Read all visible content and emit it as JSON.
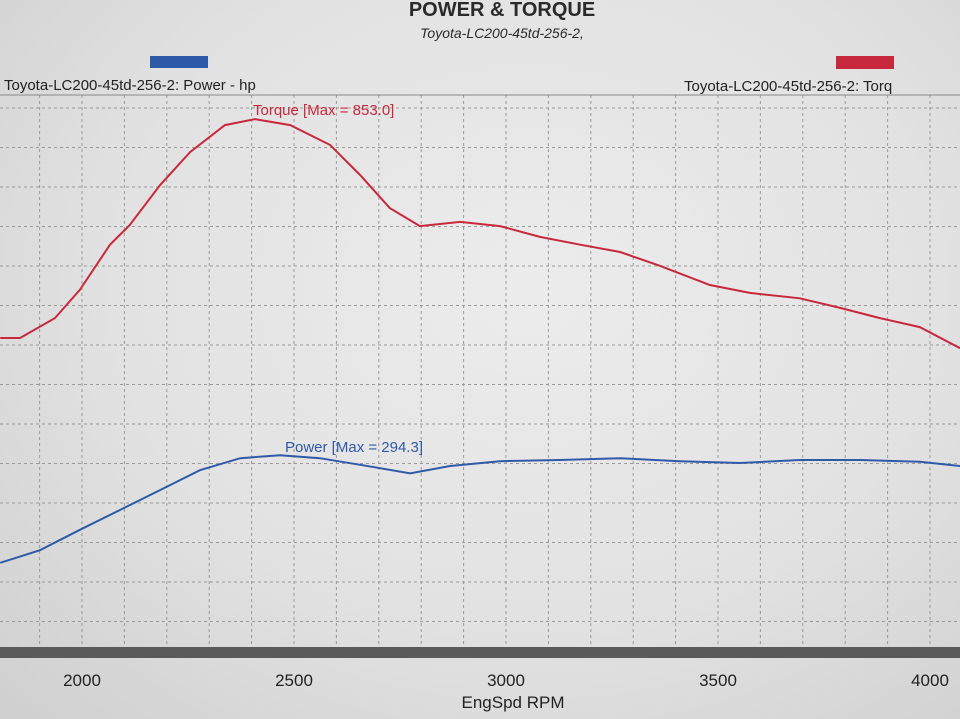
{
  "chart_data": {
    "type": "line",
    "title": "POWER & TORQUE",
    "subtitle": "Toyota-LC200-45td-256-2,",
    "xlabel": "EngSpd RPM",
    "xlim": [
      1807,
      4071
    ],
    "x_ticks": [
      "2000",
      "2500",
      "3000",
      "3500",
      "4000"
    ],
    "x_tick_values": [
      2000,
      2500,
      3000,
      3500,
      4000
    ],
    "grid": true,
    "legend": {
      "placement": "top",
      "items": [
        {
          "label": "Toyota-LC200-45td-256-2: Power -  hp",
          "color": "#2f5aa8"
        },
        {
          "label": "Toyota-LC200-45td-256-2: Torq",
          "color": "#c8283c"
        }
      ]
    },
    "series": [
      {
        "name": "Torque",
        "annotation": "Torque [Max = 853.0]",
        "color": "#c8283c",
        "x": [
          1807,
          1854,
          1936,
          1995,
          2066,
          2113,
          2184,
          2255,
          2337,
          2408,
          2491,
          2585,
          2656,
          2726,
          2797,
          2892,
          2986,
          3080,
          3175,
          3269,
          3363,
          3481,
          3575,
          3693,
          3788,
          3882,
          3976,
          4071
        ],
        "y": [
          489,
          489,
          522,
          569,
          644,
          677,
          743,
          798,
          843,
          853,
          843,
          810,
          760,
          705,
          675,
          682,
          675,
          657,
          644,
          632,
          609,
          577,
          564,
          555,
          539,
          522,
          507,
          472
        ]
      },
      {
        "name": "Power",
        "annotation": "Power  [Max = 294.3]",
        "color": "#2f5aa8",
        "x": [
          1807,
          1901,
          1995,
          2090,
          2184,
          2278,
          2373,
          2467,
          2561,
          2656,
          2774,
          2868,
          2986,
          3127,
          3269,
          3410,
          3552,
          3693,
          3835,
          3976,
          4071
        ],
        "y": [
          115,
          136,
          170,
          203,
          236,
          269,
          289,
          294,
          289,
          278,
          264,
          276,
          284,
          286,
          289,
          284,
          281,
          286,
          286,
          283,
          276
        ]
      }
    ]
  }
}
